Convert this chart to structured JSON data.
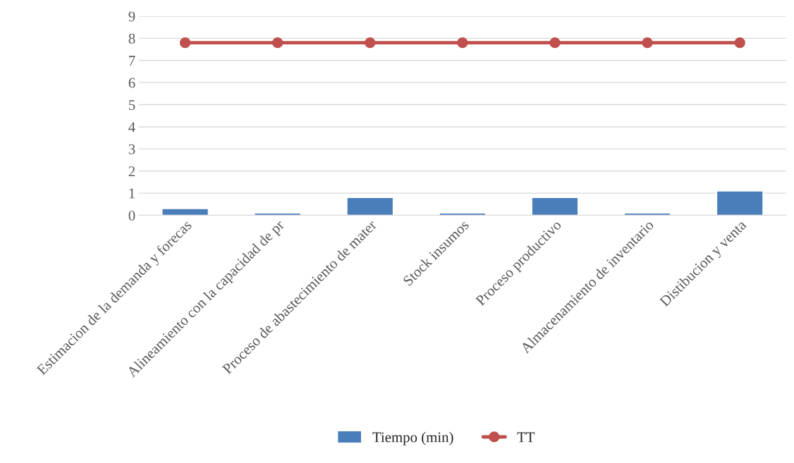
{
  "chart_data": {
    "type": "bar",
    "categories": [
      "Estimacion de la demanda y forecas",
      "Alineamiento con la capacidad de pr",
      "Proceso de abastecimiento de mater",
      "Stock insumos",
      "Proceso productivo",
      "Almacenamiento de inventario",
      "Distibucion y venta"
    ],
    "series": [
      {
        "name": "Tiempo (min)",
        "color": "#4a7ebb",
        "values": [
          0.3,
          0.1,
          0.8,
          0.1,
          0.8,
          0.1,
          1.1
        ]
      },
      {
        "name": "TT",
        "type": "line",
        "color": "#c0504d",
        "marker": "circle",
        "values": [
          7.8,
          7.8,
          7.8,
          7.8,
          7.8,
          7.8,
          7.8
        ]
      }
    ],
    "ylim": [
      0,
      9
    ],
    "yticks": [
      0,
      1,
      2,
      3,
      4,
      5,
      6,
      7,
      8,
      9
    ],
    "grid": "y",
    "legend": "bottom"
  }
}
